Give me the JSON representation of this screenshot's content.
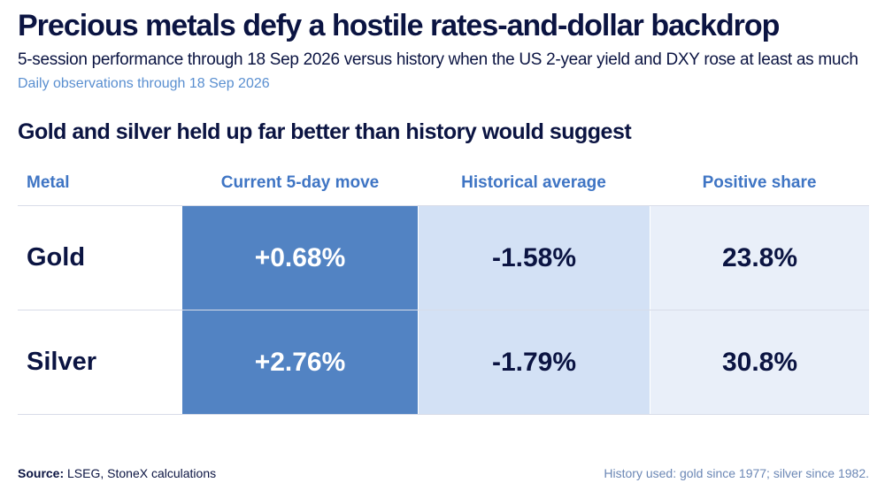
{
  "title": "Precious metals defy a hostile rates-and-dollar backdrop",
  "subtitle": "5-session performance through 18 Sep 2026 versus history when the US 2-year yield and DXY rose at least as much",
  "note": "Daily observations through 18 Sep 2026",
  "colors": {
    "title": "#0b1442",
    "header": "#3f75c4",
    "current_fill": "#5283c3",
    "historical_fill": "#d3e1f5",
    "positive_fill": "#e9eff9"
  },
  "chart_data": {
    "type": "table",
    "title": "Gold and silver held up far better than history would suggest",
    "columns": [
      "Metal",
      "Current 5-day move",
      "Historical average",
      "Positive share"
    ],
    "rows": [
      {
        "metal": "Gold",
        "current": "+0.68%",
        "historical": "-1.58%",
        "positive": "23.8%"
      },
      {
        "metal": "Silver",
        "current": "+2.76%",
        "historical": "-1.79%",
        "positive": "30.8%"
      }
    ]
  },
  "footer": {
    "source_label": "Source:",
    "source_text": " LSEG, StoneX calculations",
    "history_note": "History used: gold since 1977; silver since 1982."
  }
}
